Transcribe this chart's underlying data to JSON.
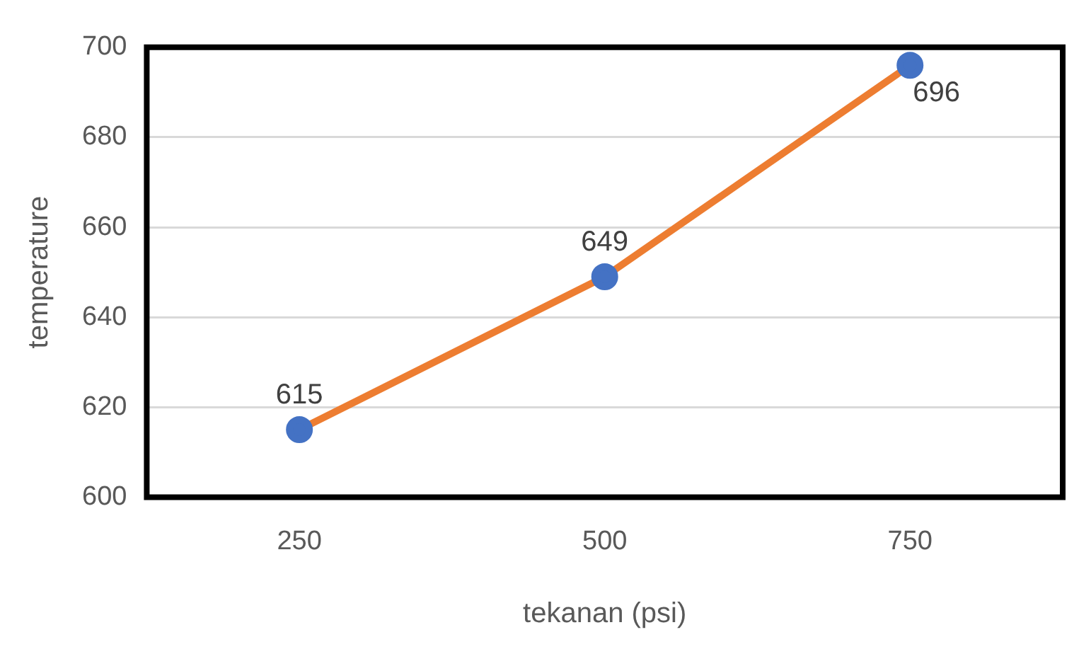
{
  "chart_data": {
    "type": "line",
    "xlabel": "tekanan (psi)",
    "ylabel": "temperature",
    "categories": [
      "250",
      "500",
      "750"
    ],
    "series": [
      {
        "color": "#ed7d31",
        "colors": [
          "#4472c4",
          "#4472c4",
          "#4472c4"
        ],
        "values": [
          615,
          649,
          696
        ]
      }
    ],
    "ylim": [
      600,
      700
    ],
    "yticks": [
      600,
      620,
      640,
      660,
      680,
      700
    ],
    "grid": "y",
    "legend": false,
    "marker": "circle",
    "line_style": "solid",
    "data_labels": true
  }
}
